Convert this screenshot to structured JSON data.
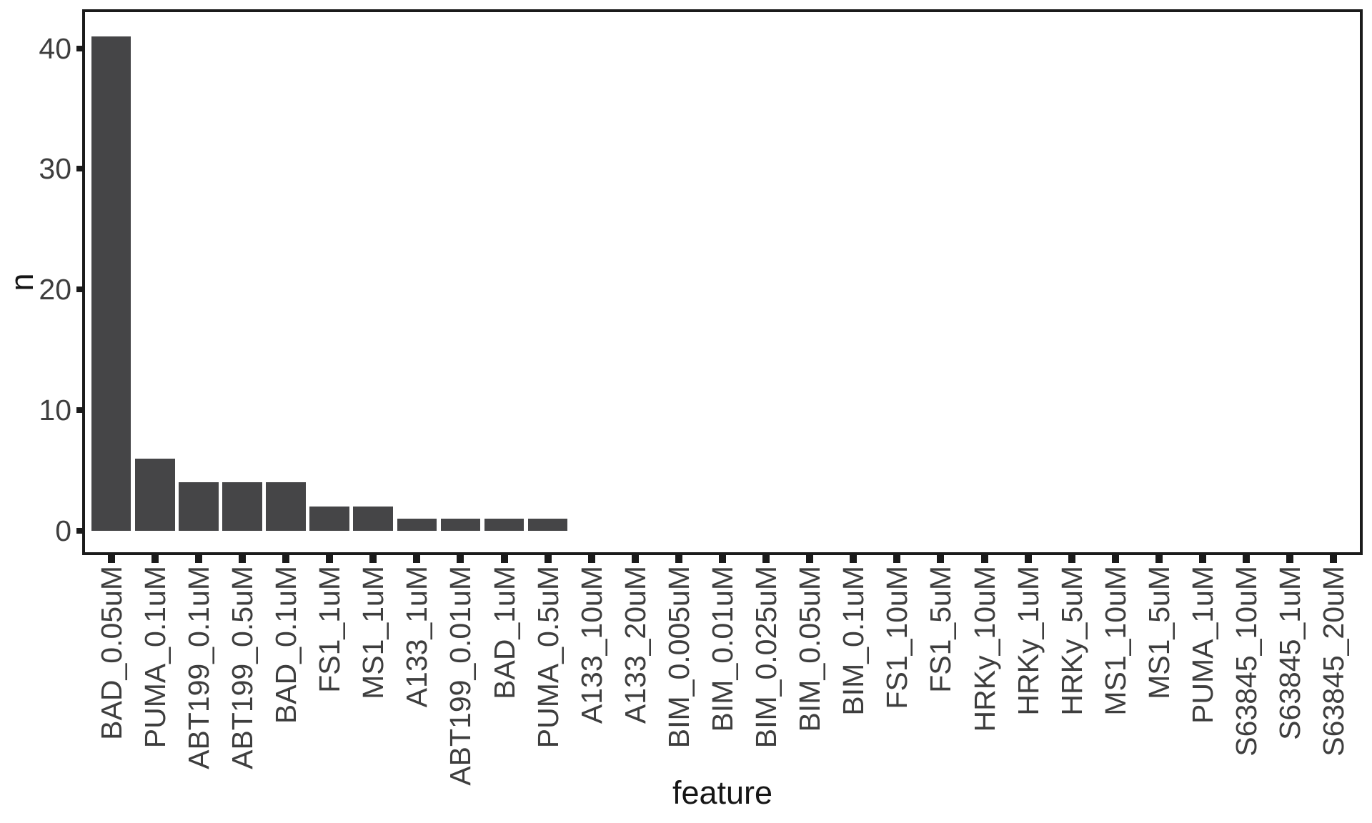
{
  "figure": {
    "background_color": "#ffffff",
    "bar_color": "#454547",
    "panel_border_color": "#1b1b1b",
    "tick_color": "#1b1b1b",
    "tick_label_color": "#3e3e3e",
    "axis_title_color": "#161616"
  },
  "chart_data": {
    "type": "bar",
    "title": "",
    "xlabel": "feature",
    "ylabel": "n",
    "categories": [
      "BAD_0.05uM",
      "PUMA_0.1uM",
      "ABT199_0.1uM",
      "ABT199_0.5uM",
      "BAD_0.1uM",
      "FS1_1uM",
      "MS1_1uM",
      "A133_1uM",
      "ABT199_0.01uM",
      "BAD_1uM",
      "PUMA_0.5uM",
      "A133_10uM",
      "A133_20uM",
      "BIM_0.005uM",
      "BIM_0.01uM",
      "BIM_0.025uM",
      "BIM_0.05uM",
      "BIM_0.1uM",
      "FS1_10uM",
      "FS1_5uM",
      "HRKy_10uM",
      "HRKy_1uM",
      "HRKy_5uM",
      "MS1_10uM",
      "MS1_5uM",
      "PUMA_1uM",
      "S63845_10uM",
      "S63845_1uM",
      "S63845_20uM"
    ],
    "values": [
      41,
      6,
      4,
      4,
      4,
      2,
      2,
      1,
      1,
      1,
      1,
      0,
      0,
      0,
      0,
      0,
      0,
      0,
      0,
      0,
      0,
      0,
      0,
      0,
      0,
      0,
      0,
      0,
      0
    ],
    "y_ticks": [
      0,
      10,
      20,
      30,
      40
    ],
    "ylim": [
      0,
      43
    ],
    "grid": false,
    "legend": false,
    "panel_border": true,
    "x_label_rotation_deg": 90
  }
}
